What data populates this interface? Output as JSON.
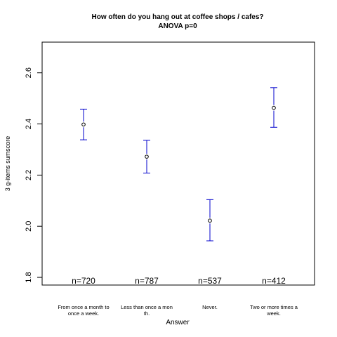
{
  "chart_data": {
    "type": "scatter",
    "title": "How often do you hang out at coffee shops / cafes?",
    "subtitle": "ANOVA p=0",
    "xlabel": "Answer",
    "ylabel": "3 g-items sumscore",
    "ylim": [
      1.77,
      2.72
    ],
    "yticks": [
      "1.8",
      "2.0",
      "2.2",
      "2.4",
      "2.6"
    ],
    "grid": false,
    "categories": [
      [
        "From once a month to",
        "once a week."
      ],
      [
        "Less than once a mon",
        "th."
      ],
      [
        "Never."
      ],
      [
        "Two or more times a",
        "week."
      ]
    ],
    "means": [
      2.398,
      2.272,
      2.022,
      2.463
    ],
    "lower": [
      2.338,
      2.208,
      1.943,
      2.387
    ],
    "upper": [
      2.458,
      2.336,
      2.104,
      2.542
    ],
    "n_labels": [
      "n=720",
      "n=787",
      "n=537",
      "n=412"
    ],
    "errorbar_color": "#0000cc"
  }
}
